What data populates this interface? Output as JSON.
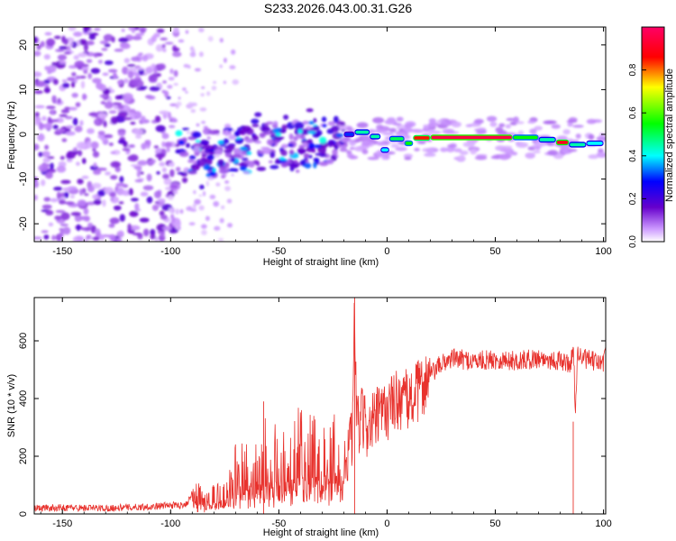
{
  "title": "S233.2026.043.00.31.G26",
  "chart_data": [
    {
      "type": "heatmap",
      "xlabel": "Height of straight line (km)",
      "ylabel": "Frequency (Hz)",
      "xlim": [
        -163,
        101
      ],
      "ylim": [
        -24,
        24
      ],
      "xticks": [
        -150,
        -100,
        -50,
        0,
        50,
        100
      ],
      "yticks": [
        -20,
        -10,
        0,
        10,
        20
      ],
      "grid": false,
      "colorbar": {
        "label": "Normalized spectral amplitude",
        "range": [
          0,
          1
        ],
        "ticks": [
          "0.0",
          "0.2",
          "0.4",
          "0.6",
          "0.8"
        ],
        "colors": [
          "#ffffff",
          "#cc99ff",
          "#6600cc",
          "#0000ff",
          "#00ffff",
          "#00ff00",
          "#ffff00",
          "#ff0000",
          "#ff0066"
        ]
      },
      "features": [
        {
          "name": "noise-region",
          "x_range": [
            -163,
            -97
          ],
          "freq_range": [
            -24,
            24
          ],
          "amplitude": 0.15
        },
        {
          "name": "rising-streak",
          "x_range": [
            -97,
            -20
          ],
          "freq_range": [
            -7,
            3
          ],
          "amplitude": 0.4
        },
        {
          "name": "dominant-line",
          "x_range": [
            -20,
            100
          ],
          "freq_center": -1,
          "amplitude_peak": 0.95
        }
      ]
    },
    {
      "type": "line",
      "xlabel": "Height of straight line (km)",
      "ylabel": "SNR (10 * v/v)",
      "xlim": [
        -163,
        101
      ],
      "ylim": [
        0,
        750
      ],
      "xticks": [
        -150,
        -100,
        -50,
        0,
        50,
        100
      ],
      "yticks": [
        0,
        200,
        400,
        600
      ],
      "grid": false,
      "color": "#e8322d",
      "series": [
        {
          "name": "SNR",
          "x": [
            -163,
            -150,
            -130,
            -110,
            -100,
            -95,
            -92,
            -90,
            -85,
            -80,
            -75,
            -70,
            -65,
            -60,
            -55,
            -50,
            -45,
            -40,
            -35,
            -30,
            -25,
            -20,
            -18,
            -16,
            -15,
            -14,
            -13,
            -12,
            -10,
            -8,
            -5,
            0,
            5,
            10,
            15,
            20,
            25,
            30,
            40,
            50,
            60,
            70,
            80,
            85,
            86,
            87,
            88,
            90,
            95,
            100,
            101
          ],
          "y": [
            20,
            22,
            20,
            25,
            30,
            30,
            40,
            80,
            45,
            55,
            70,
            130,
            150,
            170,
            180,
            160,
            170,
            200,
            180,
            190,
            200,
            190,
            220,
            250,
            700,
            320,
            300,
            330,
            310,
            300,
            330,
            360,
            400,
            390,
            430,
            480,
            520,
            540,
            530,
            535,
            530,
            540,
            530,
            520,
            600,
            350,
            560,
            540,
            530,
            520,
            600
          ]
        }
      ]
    }
  ]
}
